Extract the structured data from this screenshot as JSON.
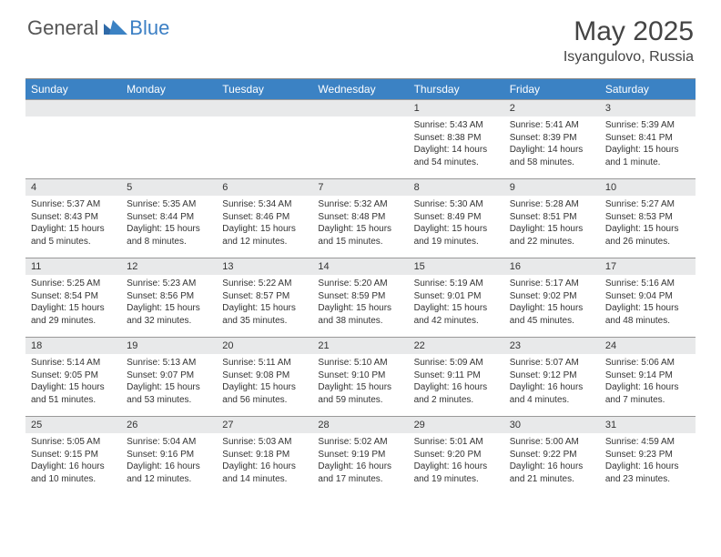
{
  "logo": {
    "general": "General",
    "blue": "Blue"
  },
  "title": "May 2025",
  "location": "Isyangulovo, Russia",
  "colors": {
    "header_bg": "#3b82c4",
    "header_text": "#ffffff",
    "daynum_bg": "#e8e9ea",
    "text": "#333333",
    "logo_blue": "#3b7fc4",
    "border": "#999999"
  },
  "day_names": [
    "Sunday",
    "Monday",
    "Tuesday",
    "Wednesday",
    "Thursday",
    "Friday",
    "Saturday"
  ],
  "weeks": [
    [
      {
        "empty": true
      },
      {
        "empty": true
      },
      {
        "empty": true
      },
      {
        "empty": true
      },
      {
        "num": "1",
        "sunrise": "Sunrise: 5:43 AM",
        "sunset": "Sunset: 8:38 PM",
        "daylight": "Daylight: 14 hours and 54 minutes."
      },
      {
        "num": "2",
        "sunrise": "Sunrise: 5:41 AM",
        "sunset": "Sunset: 8:39 PM",
        "daylight": "Daylight: 14 hours and 58 minutes."
      },
      {
        "num": "3",
        "sunrise": "Sunrise: 5:39 AM",
        "sunset": "Sunset: 8:41 PM",
        "daylight": "Daylight: 15 hours and 1 minute."
      }
    ],
    [
      {
        "num": "4",
        "sunrise": "Sunrise: 5:37 AM",
        "sunset": "Sunset: 8:43 PM",
        "daylight": "Daylight: 15 hours and 5 minutes."
      },
      {
        "num": "5",
        "sunrise": "Sunrise: 5:35 AM",
        "sunset": "Sunset: 8:44 PM",
        "daylight": "Daylight: 15 hours and 8 minutes."
      },
      {
        "num": "6",
        "sunrise": "Sunrise: 5:34 AM",
        "sunset": "Sunset: 8:46 PM",
        "daylight": "Daylight: 15 hours and 12 minutes."
      },
      {
        "num": "7",
        "sunrise": "Sunrise: 5:32 AM",
        "sunset": "Sunset: 8:48 PM",
        "daylight": "Daylight: 15 hours and 15 minutes."
      },
      {
        "num": "8",
        "sunrise": "Sunrise: 5:30 AM",
        "sunset": "Sunset: 8:49 PM",
        "daylight": "Daylight: 15 hours and 19 minutes."
      },
      {
        "num": "9",
        "sunrise": "Sunrise: 5:28 AM",
        "sunset": "Sunset: 8:51 PM",
        "daylight": "Daylight: 15 hours and 22 minutes."
      },
      {
        "num": "10",
        "sunrise": "Sunrise: 5:27 AM",
        "sunset": "Sunset: 8:53 PM",
        "daylight": "Daylight: 15 hours and 26 minutes."
      }
    ],
    [
      {
        "num": "11",
        "sunrise": "Sunrise: 5:25 AM",
        "sunset": "Sunset: 8:54 PM",
        "daylight": "Daylight: 15 hours and 29 minutes."
      },
      {
        "num": "12",
        "sunrise": "Sunrise: 5:23 AM",
        "sunset": "Sunset: 8:56 PM",
        "daylight": "Daylight: 15 hours and 32 minutes."
      },
      {
        "num": "13",
        "sunrise": "Sunrise: 5:22 AM",
        "sunset": "Sunset: 8:57 PM",
        "daylight": "Daylight: 15 hours and 35 minutes."
      },
      {
        "num": "14",
        "sunrise": "Sunrise: 5:20 AM",
        "sunset": "Sunset: 8:59 PM",
        "daylight": "Daylight: 15 hours and 38 minutes."
      },
      {
        "num": "15",
        "sunrise": "Sunrise: 5:19 AM",
        "sunset": "Sunset: 9:01 PM",
        "daylight": "Daylight: 15 hours and 42 minutes."
      },
      {
        "num": "16",
        "sunrise": "Sunrise: 5:17 AM",
        "sunset": "Sunset: 9:02 PM",
        "daylight": "Daylight: 15 hours and 45 minutes."
      },
      {
        "num": "17",
        "sunrise": "Sunrise: 5:16 AM",
        "sunset": "Sunset: 9:04 PM",
        "daylight": "Daylight: 15 hours and 48 minutes."
      }
    ],
    [
      {
        "num": "18",
        "sunrise": "Sunrise: 5:14 AM",
        "sunset": "Sunset: 9:05 PM",
        "daylight": "Daylight: 15 hours and 51 minutes."
      },
      {
        "num": "19",
        "sunrise": "Sunrise: 5:13 AM",
        "sunset": "Sunset: 9:07 PM",
        "daylight": "Daylight: 15 hours and 53 minutes."
      },
      {
        "num": "20",
        "sunrise": "Sunrise: 5:11 AM",
        "sunset": "Sunset: 9:08 PM",
        "daylight": "Daylight: 15 hours and 56 minutes."
      },
      {
        "num": "21",
        "sunrise": "Sunrise: 5:10 AM",
        "sunset": "Sunset: 9:10 PM",
        "daylight": "Daylight: 15 hours and 59 minutes."
      },
      {
        "num": "22",
        "sunrise": "Sunrise: 5:09 AM",
        "sunset": "Sunset: 9:11 PM",
        "daylight": "Daylight: 16 hours and 2 minutes."
      },
      {
        "num": "23",
        "sunrise": "Sunrise: 5:07 AM",
        "sunset": "Sunset: 9:12 PM",
        "daylight": "Daylight: 16 hours and 4 minutes."
      },
      {
        "num": "24",
        "sunrise": "Sunrise: 5:06 AM",
        "sunset": "Sunset: 9:14 PM",
        "daylight": "Daylight: 16 hours and 7 minutes."
      }
    ],
    [
      {
        "num": "25",
        "sunrise": "Sunrise: 5:05 AM",
        "sunset": "Sunset: 9:15 PM",
        "daylight": "Daylight: 16 hours and 10 minutes."
      },
      {
        "num": "26",
        "sunrise": "Sunrise: 5:04 AM",
        "sunset": "Sunset: 9:16 PM",
        "daylight": "Daylight: 16 hours and 12 minutes."
      },
      {
        "num": "27",
        "sunrise": "Sunrise: 5:03 AM",
        "sunset": "Sunset: 9:18 PM",
        "daylight": "Daylight: 16 hours and 14 minutes."
      },
      {
        "num": "28",
        "sunrise": "Sunrise: 5:02 AM",
        "sunset": "Sunset: 9:19 PM",
        "daylight": "Daylight: 16 hours and 17 minutes."
      },
      {
        "num": "29",
        "sunrise": "Sunrise: 5:01 AM",
        "sunset": "Sunset: 9:20 PM",
        "daylight": "Daylight: 16 hours and 19 minutes."
      },
      {
        "num": "30",
        "sunrise": "Sunrise: 5:00 AM",
        "sunset": "Sunset: 9:22 PM",
        "daylight": "Daylight: 16 hours and 21 minutes."
      },
      {
        "num": "31",
        "sunrise": "Sunrise: 4:59 AM",
        "sunset": "Sunset: 9:23 PM",
        "daylight": "Daylight: 16 hours and 23 minutes."
      }
    ]
  ]
}
